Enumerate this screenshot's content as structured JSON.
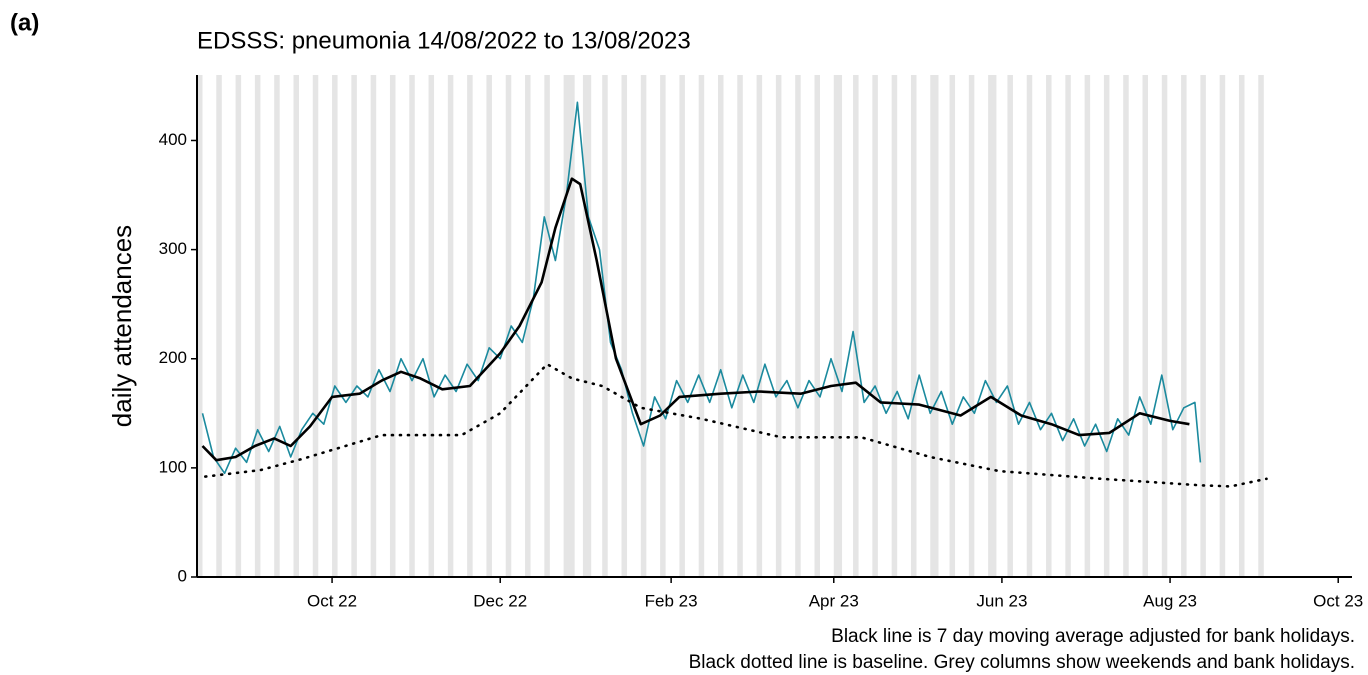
{
  "chart_data": {
    "type": "line",
    "panel_label": "(a)",
    "title": "EDSSS: pneumonia 14/08/2022 to 13/08/2023",
    "y_label": "daily attendances",
    "notes": [
      "Black line is 7 day moving average adjusted for bank holidays.",
      "Black dotted line is baseline. Grey columns show weekends and bank holidays."
    ],
    "xlim": [
      -49,
      370
    ],
    "xticks": [
      {
        "value": 0,
        "label": "Oct 22"
      },
      {
        "value": 61,
        "label": "Dec 22"
      },
      {
        "value": 123,
        "label": "Feb 23"
      },
      {
        "value": 182,
        "label": "Apr 23"
      },
      {
        "value": 243,
        "label": "Jun 23"
      },
      {
        "value": 304,
        "label": "Aug 23"
      },
      {
        "value": 365,
        "label": "Oct 23"
      }
    ],
    "ylim": [
      0,
      460
    ],
    "yticks": [
      0,
      100,
      200,
      300,
      400
    ],
    "grid": false,
    "shade_color": "#e5e5e5",
    "shaded": [
      [
        -49,
        -47
      ],
      [
        -42,
        -40
      ],
      [
        -35,
        -33
      ],
      [
        -28,
        -26
      ],
      [
        -21,
        -19
      ],
      [
        -14,
        -12
      ],
      [
        -7,
        -5
      ],
      [
        0,
        2
      ],
      [
        7,
        9
      ],
      [
        14,
        16
      ],
      [
        21,
        23
      ],
      [
        28,
        30
      ],
      [
        35,
        37
      ],
      [
        42,
        44
      ],
      [
        49,
        51
      ],
      [
        56,
        58
      ],
      [
        63,
        65
      ],
      [
        70,
        72
      ],
      [
        77,
        79
      ],
      [
        84,
        88
      ],
      [
        91,
        94
      ],
      [
        98,
        100
      ],
      [
        105,
        107
      ],
      [
        112,
        114
      ],
      [
        119,
        121
      ],
      [
        126,
        128
      ],
      [
        133,
        135
      ],
      [
        140,
        142
      ],
      [
        147,
        149
      ],
      [
        154,
        156
      ],
      [
        161,
        163
      ],
      [
        168,
        170
      ],
      [
        175,
        177
      ],
      [
        182,
        185
      ],
      [
        189,
        191
      ],
      [
        196,
        198
      ],
      [
        203,
        205
      ],
      [
        210,
        212
      ],
      [
        217,
        220
      ],
      [
        224,
        226
      ],
      [
        231,
        233
      ],
      [
        238,
        241
      ],
      [
        245,
        247
      ],
      [
        252,
        254
      ],
      [
        259,
        261
      ],
      [
        266,
        268
      ],
      [
        273,
        275
      ],
      [
        280,
        282
      ],
      [
        287,
        289
      ],
      [
        294,
        296
      ],
      [
        301,
        303
      ],
      [
        308,
        310
      ],
      [
        315,
        317
      ],
      [
        322,
        324
      ],
      [
        329,
        331
      ],
      [
        336,
        338
      ]
    ],
    "series": [
      {
        "color": "#1b8a9e",
        "line_style": "solid",
        "width": 1.6,
        "x": [
          -47,
          -43,
          -39,
          -35,
          -31,
          -27,
          -23,
          -19,
          -15,
          -11,
          -7,
          -3,
          1,
          5,
          9,
          13,
          17,
          21,
          25,
          29,
          33,
          37,
          41,
          45,
          49,
          53,
          57,
          61,
          65,
          69,
          73,
          77,
          81,
          85,
          89,
          93,
          97,
          101,
          105,
          109,
          113,
          117,
          121,
          125,
          129,
          133,
          137,
          141,
          145,
          149,
          153,
          157,
          161,
          165,
          169,
          173,
          177,
          181,
          185,
          189,
          193,
          197,
          201,
          205,
          209,
          213,
          217,
          221,
          225,
          229,
          233,
          237,
          241,
          245,
          249,
          253,
          257,
          261,
          265,
          269,
          273,
          277,
          281,
          285,
          289,
          293,
          297,
          301,
          305,
          309,
          313,
          315
        ],
        "values": [
          150,
          110,
          95,
          118,
          105,
          135,
          115,
          138,
          110,
          135,
          150,
          140,
          175,
          160,
          175,
          165,
          190,
          170,
          200,
          180,
          200,
          165,
          185,
          170,
          195,
          180,
          210,
          200,
          230,
          215,
          255,
          330,
          290,
          350,
          435,
          330,
          300,
          215,
          190,
          150,
          120,
          165,
          145,
          180,
          160,
          185,
          160,
          190,
          155,
          185,
          160,
          195,
          165,
          180,
          155,
          180,
          165,
          200,
          170,
          225,
          160,
          175,
          150,
          170,
          145,
          185,
          150,
          170,
          140,
          165,
          150,
          180,
          160,
          175,
          140,
          160,
          135,
          150,
          125,
          145,
          120,
          140,
          115,
          145,
          130,
          165,
          140,
          185,
          135,
          155,
          160,
          105
        ]
      },
      {
        "color": "#000000",
        "line_style": "solid",
        "width": 2.6,
        "x": [
          -47,
          -42,
          -35,
          -28,
          -21,
          -15,
          -8,
          0,
          10,
          18,
          25,
          32,
          40,
          50,
          61,
          68,
          76,
          81,
          87,
          90,
          96,
          103,
          112,
          119,
          126,
          141,
          155,
          170,
          181,
          190,
          199,
          213,
          228,
          239,
          250,
          261,
          271,
          282,
          293,
          304,
          311
        ],
        "values": [
          120,
          107,
          110,
          120,
          127,
          120,
          138,
          165,
          168,
          180,
          188,
          182,
          172,
          175,
          205,
          230,
          270,
          320,
          365,
          360,
          290,
          200,
          140,
          148,
          165,
          168,
          170,
          168,
          175,
          178,
          160,
          158,
          148,
          165,
          148,
          140,
          130,
          132,
          150,
          143,
          140
        ]
      },
      {
        "color": "#000000",
        "line_style": "dotted",
        "width": 2.6,
        "x": [
          -46,
          -26,
          -11,
          18,
          47,
          61,
          78,
          87,
          98,
          112,
          134,
          163,
          192,
          217,
          242,
          279,
          315,
          326,
          339
        ],
        "values": [
          92,
          98,
          108,
          130,
          130,
          150,
          195,
          182,
          175,
          155,
          145,
          128,
          128,
          110,
          97,
          90,
          84,
          83,
          90
        ]
      }
    ]
  }
}
